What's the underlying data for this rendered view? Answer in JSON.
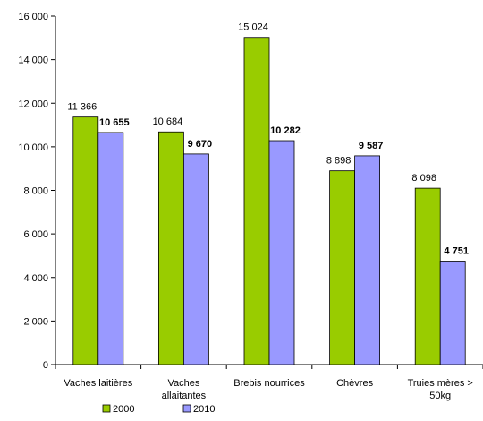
{
  "chart_data": {
    "type": "bar",
    "title": "",
    "xlabel": "",
    "ylabel": "",
    "ylim": [
      0,
      16000
    ],
    "yticks": [
      0,
      2000,
      4000,
      6000,
      8000,
      10000,
      12000,
      14000,
      16000
    ],
    "ytick_labels": [
      "0",
      "2 000",
      "4 000",
      "6 000",
      "8 000",
      "10 000",
      "12 000",
      "14 000",
      "16 000"
    ],
    "grid": false,
    "legend_position": "bottom-left",
    "categories": [
      [
        "Vaches laitières"
      ],
      [
        "Vaches",
        "allaitantes"
      ],
      [
        "Brebis nourrices"
      ],
      [
        "Chèvres"
      ],
      [
        "Truies mères >",
        "50kg"
      ]
    ],
    "series": [
      {
        "name": "2000",
        "color": "#99cc00",
        "values": [
          11366,
          10684,
          15024,
          8898,
          8098
        ],
        "labels": [
          "11 366",
          "10 684",
          "15 024",
          "8 898",
          "8 098"
        ],
        "bold_labels": false
      },
      {
        "name": "2010",
        "color": "#9999ff",
        "values": [
          10655,
          9670,
          10282,
          9587,
          4751
        ],
        "labels": [
          "10 655",
          "9 670",
          "10 282",
          "9 587",
          "4 751"
        ],
        "bold_labels": true
      }
    ]
  }
}
